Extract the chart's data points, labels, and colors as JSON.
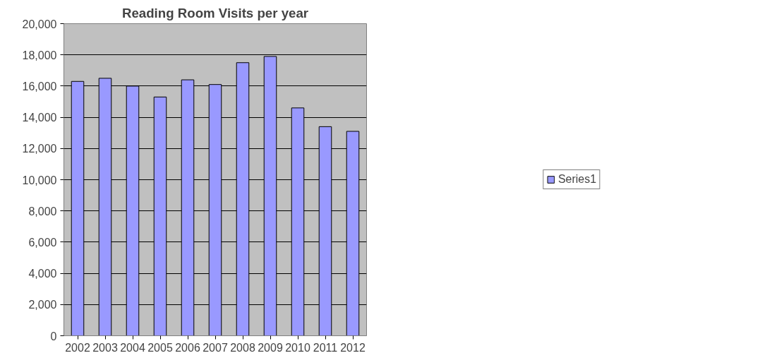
{
  "chart_data": {
    "type": "bar",
    "title": "Reading Room Visits per year",
    "categories": [
      "2002",
      "2003",
      "2004",
      "2005",
      "2006",
      "2007",
      "2008",
      "2009",
      "2010",
      "2011",
      "2012"
    ],
    "series": [
      {
        "name": "Series1",
        "color": "#9999ff",
        "values": [
          16300,
          16500,
          16000,
          15300,
          16400,
          16100,
          17500,
          17900,
          14600,
          13400,
          13100
        ]
      }
    ],
    "ylim": [
      0,
      20000
    ],
    "yticks": [
      {
        "value": 0,
        "label": "0"
      },
      {
        "value": 2000,
        "label": "2,000"
      },
      {
        "value": 4000,
        "label": "4,000"
      },
      {
        "value": 6000,
        "label": "6,000"
      },
      {
        "value": 8000,
        "label": "8,000"
      },
      {
        "value": 10000,
        "label": "10,000"
      },
      {
        "value": 12000,
        "label": "12,000"
      },
      {
        "value": 14000,
        "label": "14,000"
      },
      {
        "value": 16000,
        "label": "16,000"
      },
      {
        "value": 18000,
        "label": "18,000"
      },
      {
        "value": 20000,
        "label": "20,000"
      }
    ],
    "grid": "y",
    "legend": "right"
  }
}
